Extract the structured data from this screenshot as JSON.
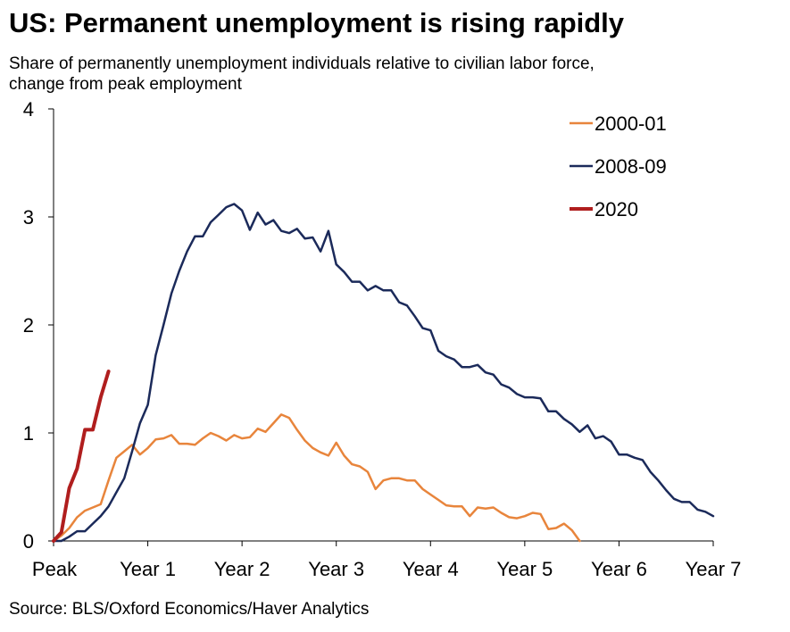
{
  "title": "US: Permanent unemployment is rising rapidly",
  "subtitle_line1": "Share of permanently unemployment individuals relative to civilian labor force,",
  "subtitle_line2": "change from peak employment",
  "source": "Source: BLS/Oxford Economics/Haver Analytics",
  "chart_data": {
    "type": "line",
    "title": "US: Permanent unemployment is rising rapidly",
    "xlabel": "",
    "ylabel": "",
    "x_ticks": [
      "Peak",
      "Year 1",
      "Year 2",
      "Year 3",
      "Year 4",
      "Year 5",
      "Year 6",
      "Year 7"
    ],
    "xlim": [
      0,
      84
    ],
    "ylim": [
      0,
      4
    ],
    "y_ticks": [
      "0",
      "1",
      "2",
      "3",
      "4"
    ],
    "grid": false,
    "legend_position": "top-right",
    "series": [
      {
        "name": "2000-01",
        "color": "#E8853C",
        "width": 2.5,
        "values": [
          0,
          0.05,
          0.12,
          0.22,
          0.28,
          0.31,
          0.34,
          0.56,
          0.77,
          0.83,
          0.89,
          0.8,
          0.86,
          0.94,
          0.95,
          0.98,
          0.9,
          0.9,
          0.89,
          0.95,
          1.0,
          0.97,
          0.93,
          0.98,
          0.95,
          0.96,
          1.04,
          1.01,
          1.09,
          1.17,
          1.14,
          1.03,
          0.93,
          0.86,
          0.82,
          0.79,
          0.91,
          0.79,
          0.71,
          0.69,
          0.64,
          0.48,
          0.56,
          0.58,
          0.58,
          0.56,
          0.56,
          0.48,
          0.43,
          0.38,
          0.33,
          0.32,
          0.32,
          0.23,
          0.31,
          0.3,
          0.31,
          0.26,
          0.22,
          0.21,
          0.23,
          0.26,
          0.25,
          0.11,
          0.12,
          0.16,
          0.1,
          0.0
        ]
      },
      {
        "name": "2008-09",
        "color": "#1B2A5A",
        "width": 2.5,
        "values": [
          0,
          0.0,
          0.04,
          0.09,
          0.09,
          0.16,
          0.23,
          0.32,
          0.45,
          0.58,
          0.83,
          1.09,
          1.26,
          1.72,
          2.0,
          2.29,
          2.5,
          2.68,
          2.82,
          2.82,
          2.95,
          3.02,
          3.09,
          3.12,
          3.06,
          2.88,
          3.04,
          2.93,
          2.97,
          2.87,
          2.85,
          2.89,
          2.8,
          2.81,
          2.68,
          2.87,
          2.56,
          2.49,
          2.4,
          2.4,
          2.32,
          2.36,
          2.32,
          2.32,
          2.21,
          2.18,
          2.08,
          1.97,
          1.95,
          1.76,
          1.71,
          1.68,
          1.61,
          1.61,
          1.63,
          1.56,
          1.54,
          1.45,
          1.42,
          1.36,
          1.33,
          1.33,
          1.32,
          1.2,
          1.2,
          1.13,
          1.08,
          1.01,
          1.07,
          0.95,
          0.97,
          0.92,
          0.8,
          0.8,
          0.77,
          0.75,
          0.64,
          0.56,
          0.47,
          0.39,
          0.36,
          0.36,
          0.29,
          0.27,
          0.23
        ]
      },
      {
        "name": "2020",
        "color": "#B01E1E",
        "width": 4,
        "values": [
          0,
          0.08,
          0.49,
          0.67,
          1.03,
          1.03,
          1.33,
          1.57
        ]
      }
    ]
  }
}
